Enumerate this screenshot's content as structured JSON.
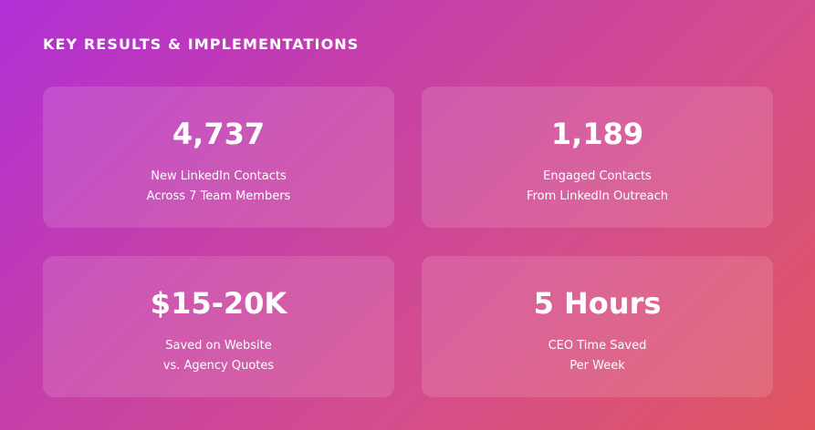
{
  "title": "KEY RESULTS & IMPLEMENTATIONS",
  "cards": [
    {
      "value": "4,737",
      "line1": "New LinkedIn Contacts",
      "line2": "Across 7 Team Members"
    },
    {
      "value": "1,189",
      "line1": "Engaged Contacts",
      "line2": "From LinkedIn Outreach"
    },
    {
      "value": "$15-20K",
      "line1": "Saved on Website",
      "line2": "vs. Agency Quotes"
    },
    {
      "value": "5 Hours",
      "line1": "CEO Time Saved",
      "line2": "Per Week"
    }
  ]
}
